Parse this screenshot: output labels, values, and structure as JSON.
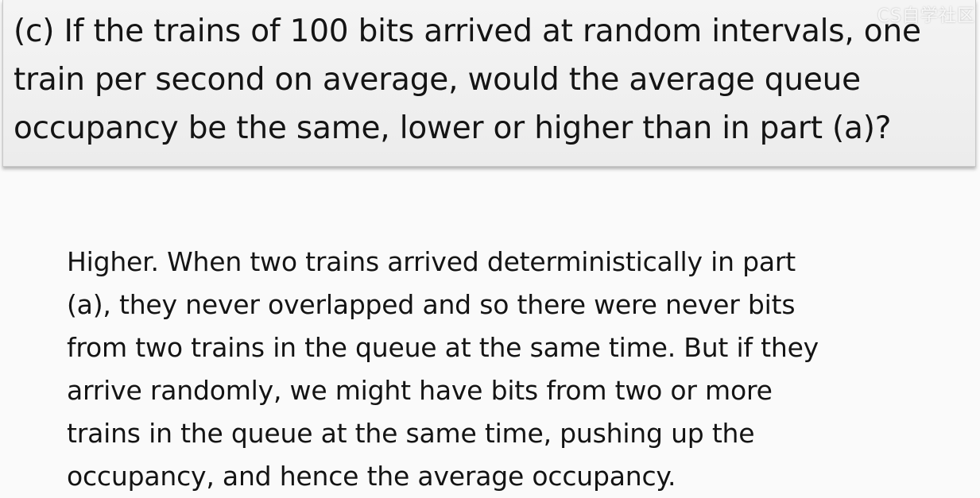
{
  "question": {
    "lines": [
      "(c) If the trains of 100 bits arrived at random intervals, one",
      "train per second on average, would the average queue",
      "occupancy be the same, lower or higher than in part (a)?"
    ]
  },
  "answer": {
    "lines": [
      "Higher. When two trains arrived deterministically in part",
      "(a), they never overlapped and so there were never bits",
      "from two trains in the queue at the same time. But if they",
      "arrive randomly, we might have bits from two or more",
      "trains in the queue at the same time, pushing up the",
      "occupancy, and hence the average occupancy."
    ]
  },
  "watermark": "CS自学社区"
}
